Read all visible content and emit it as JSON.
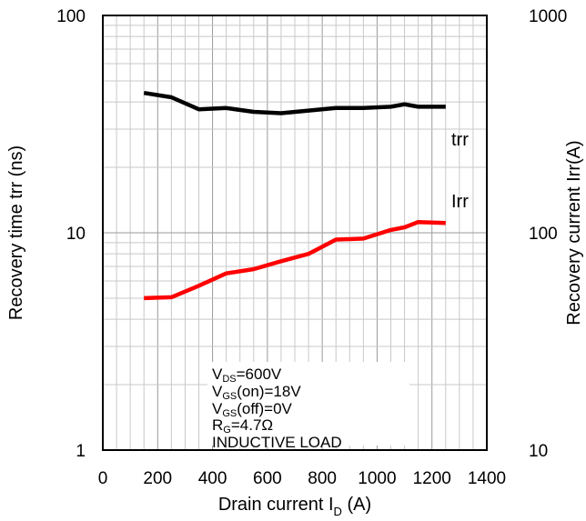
{
  "chart_data": {
    "type": "line",
    "xlabel_main": "Drain current I",
    "xlabel_sub": "D",
    "xlabel_unit": " (A)",
    "ylabel_left": "Recovery time trr (ns)",
    "ylabel_right": "Recovery current Irr(A)",
    "xlim": [
      0,
      1400
    ],
    "x_ticks": [
      "0",
      "200",
      "400",
      "600",
      "800",
      "1000",
      "1200",
      "1400"
    ],
    "ylim_left": [
      1,
      100
    ],
    "y_left_ticks": [
      "1",
      "10",
      "100"
    ],
    "ylim_right": [
      10,
      1000
    ],
    "y_right_ticks": [
      "10",
      "100",
      "1000"
    ],
    "log_scale": true,
    "grid": true,
    "series": [
      {
        "name": "trr",
        "axis": "left",
        "color": "#000000",
        "x": [
          150,
          250,
          350,
          450,
          550,
          650,
          750,
          850,
          950,
          1050,
          1100,
          1150,
          1250
        ],
        "y": [
          44,
          42,
          37,
          37.5,
          36,
          35.5,
          36.5,
          37.5,
          37.5,
          38,
          39,
          38,
          38
        ]
      },
      {
        "name": "Irr",
        "axis": "right",
        "color": "#ff0000",
        "x": [
          150,
          250,
          350,
          450,
          550,
          650,
          750,
          850,
          950,
          1050,
          1100,
          1150,
          1250
        ],
        "y": [
          50,
          50.5,
          57,
          65,
          68,
          74,
          80,
          93,
          94,
          103,
          106,
          112,
          111
        ]
      }
    ],
    "conditions": [
      {
        "main": "V",
        "sub": "DS",
        "rest": "=600V"
      },
      {
        "main": "V",
        "sub": "GS",
        "rest": "(on)=18V"
      },
      {
        "main": "V",
        "sub": "GS",
        "rest": "(off)=0V"
      },
      {
        "main": "R",
        "sub": "G",
        "rest": "=4.7Ω"
      },
      {
        "main": "INDUCTIVE LOAD",
        "sub": "",
        "rest": ""
      }
    ]
  }
}
